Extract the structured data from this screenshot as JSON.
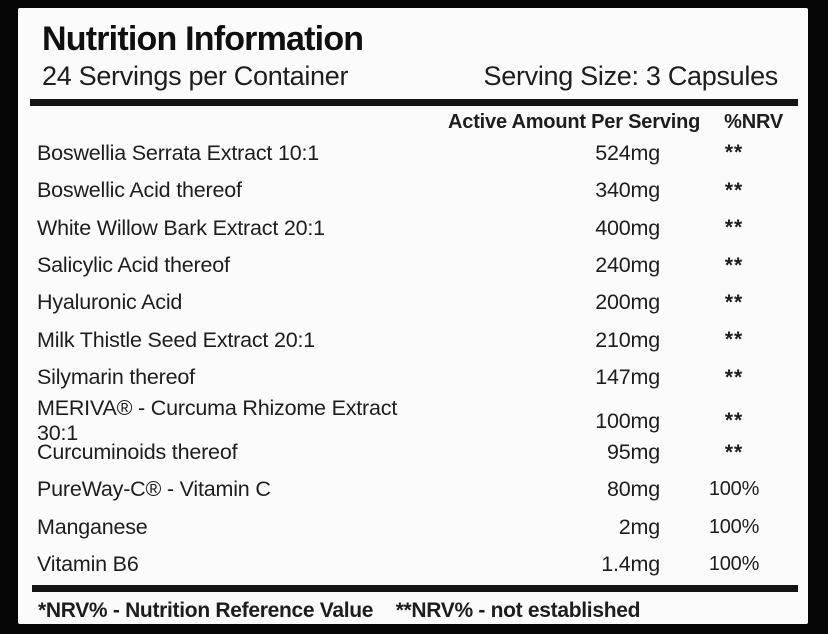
{
  "panel": {
    "title": "Nutrition Information",
    "servings_per_container": "24 Servings per Container",
    "serving_size": "Serving Size: 3 Capsules"
  },
  "table": {
    "columns": {
      "amount": "Active Amount Per Serving",
      "nrv": "%NRV"
    },
    "rows": [
      {
        "name": "Boswellia Serrata Extract 10:1",
        "amount": "524mg",
        "nrv": "**"
      },
      {
        "name": "Boswellic Acid thereof",
        "amount": "340mg",
        "nrv": "**"
      },
      {
        "name": "White Willow Bark Extract 20:1",
        "amount": "400mg",
        "nrv": "**"
      },
      {
        "name": "Salicylic Acid thereof",
        "amount": "240mg",
        "nrv": "**"
      },
      {
        "name": "Hyaluronic Acid",
        "amount": "200mg",
        "nrv": "**"
      },
      {
        "name": "Milk Thistle Seed Extract 20:1",
        "amount": "210mg",
        "nrv": "**"
      },
      {
        "name": "Silymarin thereof",
        "amount": "147mg",
        "nrv": "**"
      },
      {
        "name": "MERIVA® - Curcuma Rhizome Extract 30:1",
        "amount": "100mg",
        "nrv": "**"
      },
      {
        "name": "Curcuminoids thereof",
        "amount": "95mg",
        "nrv": "**"
      },
      {
        "name": "PureWay-C® - Vitamin C",
        "amount": "80mg",
        "nrv": "100%"
      },
      {
        "name": "Manganese",
        "amount": "2mg",
        "nrv": "100%"
      },
      {
        "name": "Vitamin B6",
        "amount": "1.4mg",
        "nrv": "100%"
      }
    ]
  },
  "footnotes": {
    "nrv_defined": "*NRV% - Nutrition Reference Value",
    "nrv_not_established": "**NRV% - not established"
  },
  "colors": {
    "background": "#060606",
    "panel": "#fbfbfb",
    "text": "#1d1d1d",
    "divider": "#141414"
  }
}
